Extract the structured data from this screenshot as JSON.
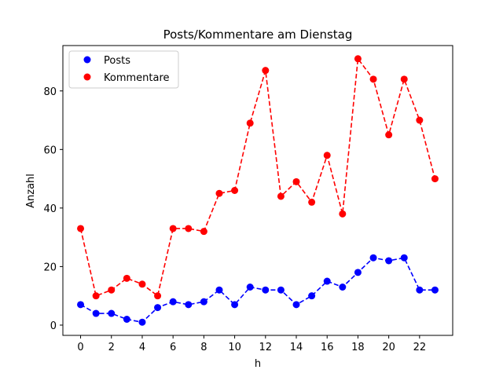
{
  "chart_data": {
    "type": "line",
    "title": "Posts/Kommentare am Dienstag",
    "xlabel": "h",
    "ylabel": "Anzahl",
    "x": [
      0,
      1,
      2,
      3,
      4,
      5,
      6,
      7,
      8,
      9,
      10,
      11,
      12,
      13,
      14,
      15,
      16,
      17,
      18,
      19,
      20,
      21,
      22,
      23
    ],
    "xlim": [
      -1.15,
      24.15
    ],
    "ylim": [
      -3.5,
      95.5
    ],
    "xticks": [
      0,
      2,
      4,
      6,
      8,
      10,
      12,
      14,
      16,
      18,
      20,
      22
    ],
    "yticks": [
      0,
      20,
      40,
      60,
      80
    ],
    "grid": false,
    "legend_position": "top-left",
    "series": [
      {
        "name": "Posts",
        "color": "#0000ff",
        "line_style": "dashed",
        "marker": "circle",
        "values": [
          7,
          4,
          4,
          2,
          1,
          6,
          8,
          7,
          8,
          12,
          7,
          13,
          12,
          12,
          7,
          10,
          15,
          13,
          18,
          23,
          22,
          23,
          12,
          12
        ]
      },
      {
        "name": "Kommentare",
        "color": "#ff0000",
        "line_style": "dashed",
        "marker": "circle",
        "values": [
          33,
          10,
          12,
          16,
          14,
          10,
          33,
          33,
          32,
          45,
          46,
          69,
          87,
          44,
          49,
          42,
          58,
          38,
          91,
          84,
          65,
          84,
          70,
          50
        ]
      }
    ]
  }
}
